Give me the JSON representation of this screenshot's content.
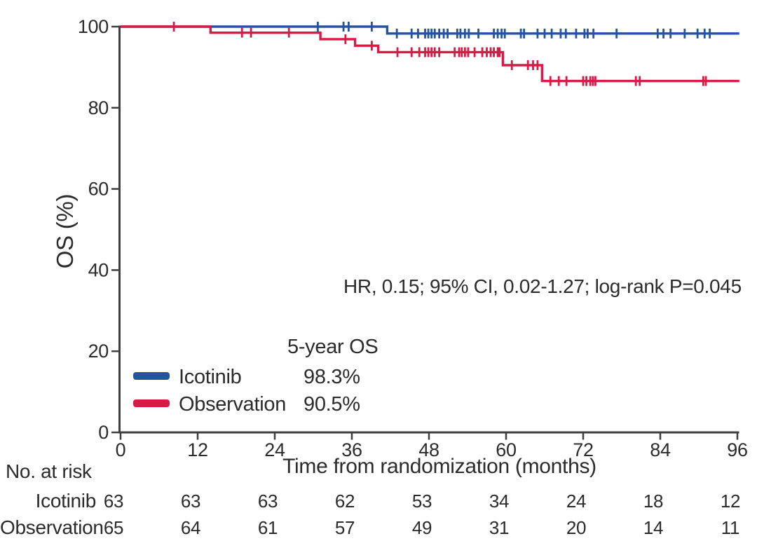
{
  "chart_data": {
    "type": "line",
    "subtype": "kaplan-meier",
    "title": "",
    "xlabel": "Time from randomization (months)",
    "ylabel": "OS (%)",
    "xlim": [
      0,
      96
    ],
    "ylim": [
      0,
      100
    ],
    "xticks": [
      0,
      12,
      24,
      36,
      48,
      60,
      72,
      84,
      96
    ],
    "yticks": [
      0,
      20,
      40,
      60,
      80,
      100
    ],
    "grid": false,
    "annotation": "HR, 0.15; 95% CI, 0.02-1.27; log-rank P=0.045",
    "legend": {
      "position": "lower-left",
      "header": "5-year OS",
      "rows": [
        {
          "name": "Icotinib",
          "value": "98.3%",
          "color": "#24539f"
        },
        {
          "name": "Observation",
          "value": "90.5%",
          "color": "#d81b45"
        }
      ]
    },
    "series": [
      {
        "name": "Icotinib",
        "color": "#24539f",
        "five_year_os_pct": 98.3,
        "steps": [
          [
            0,
            100
          ],
          [
            41.5,
            98.3
          ]
        ],
        "end_time": 96.3,
        "censor_times": [
          30.7,
          34.7,
          35.5,
          39.1,
          43.0,
          45.3,
          46.3,
          47.4,
          47.9,
          48.4,
          48.9,
          49.6,
          50.3,
          50.9,
          52.4,
          52.9,
          53.6,
          54.2,
          55.7,
          58.1,
          58.7,
          59.3,
          59.8,
          62.3,
          62.8,
          64.9,
          66.0,
          67.1,
          68.5,
          69.3,
          70.9,
          72.2,
          72.7,
          73.6,
          77.2,
          83.6,
          84.5,
          85.6,
          87.8,
          89.8,
          90.9,
          91.7
        ]
      },
      {
        "name": "Observation",
        "color": "#d81b45",
        "five_year_os_pct": 90.5,
        "steps": [
          [
            0,
            100
          ],
          [
            14.0,
            98.5
          ],
          [
            31.1,
            96.9
          ],
          [
            36.5,
            95.3
          ],
          [
            40.1,
            93.7
          ],
          [
            59.5,
            90.5
          ],
          [
            65.6,
            86.6
          ]
        ],
        "end_time": 96.3,
        "censor_times": [
          8.3,
          18.9,
          20.3,
          26.2,
          35.0,
          39.1,
          43.1,
          45.3,
          46.5,
          47.4,
          47.9,
          48.4,
          48.9,
          49.6,
          52.0,
          52.7,
          53.1,
          53.6,
          54.1,
          55.1,
          56.3,
          57.0,
          57.6,
          58.1,
          58.7,
          59.0,
          60.9,
          63.4,
          64.2,
          64.9,
          66.9,
          68.2,
          69.4,
          72.0,
          72.5,
          73.1,
          73.5,
          73.9,
          80.2,
          80.8,
          90.7,
          91.1
        ]
      }
    ],
    "at_risk": {
      "title": "No. at risk",
      "times": [
        0,
        12,
        24,
        36,
        48,
        60,
        72,
        84,
        96
      ],
      "rows": [
        {
          "name": "Icotinib",
          "values": [
            63,
            63,
            63,
            62,
            53,
            34,
            24,
            18,
            12
          ]
        },
        {
          "name": "Observation",
          "values": [
            65,
            64,
            61,
            57,
            49,
            31,
            20,
            14,
            11
          ]
        }
      ]
    },
    "colors": {
      "axis": "#3f3f41",
      "text": "#2b2b2b",
      "background": "#ffffff"
    }
  }
}
